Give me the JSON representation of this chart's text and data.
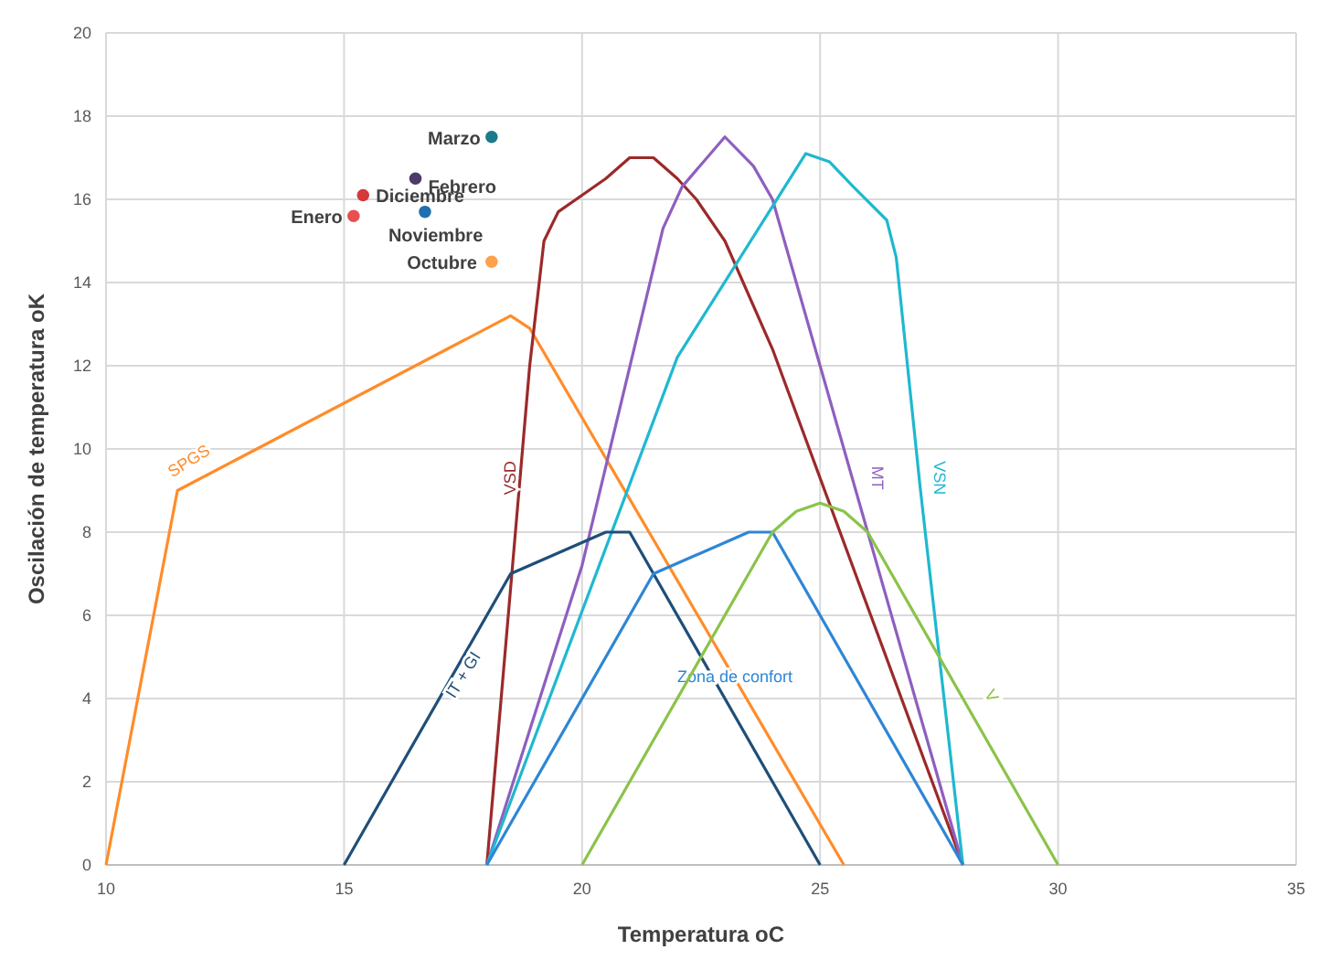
{
  "chart_data": {
    "type": "line",
    "xlabel": "Temperatura oC",
    "ylabel": "Oscilación de temperatura oK",
    "xlim": [
      10,
      35
    ],
    "xticks": [
      10,
      15,
      20,
      25,
      30,
      35
    ],
    "ylim": [
      0,
      20
    ],
    "yticks": [
      0,
      2,
      4,
      6,
      8,
      10,
      12,
      14,
      16,
      18,
      20
    ],
    "grid": true,
    "marker": "none",
    "line_style": "solid",
    "series": [
      {
        "name": "SPGS",
        "color": "#ff8c2a",
        "x": [
          10,
          11.5,
          18.5,
          18.9,
          25.5
        ],
        "values": [
          0,
          9,
          13.2,
          12.9,
          0
        ]
      },
      {
        "name": "VSD",
        "color": "#9b2a2a",
        "x": [
          18,
          18.9,
          19.2,
          19.5,
          20,
          20.5,
          21,
          21.5,
          22,
          22.4,
          23,
          24,
          28
        ],
        "values": [
          0,
          12,
          15,
          15.7,
          16.1,
          16.5,
          17,
          17,
          16.5,
          16,
          15,
          12.4,
          0
        ]
      },
      {
        "name": "MT",
        "color": "#8e5fbf",
        "x": [
          18,
          20,
          21.7,
          22.1,
          23,
          23.6,
          24,
          28
        ],
        "values": [
          0,
          7.2,
          15.3,
          16.3,
          17.5,
          16.8,
          16,
          0
        ]
      },
      {
        "name": "VSN",
        "color": "#1fb8d0",
        "x": [
          18,
          22,
          24.7,
          25.2,
          25.7,
          26.4,
          26.6,
          27.1,
          28
        ],
        "values": [
          0,
          12.2,
          17.1,
          16.9,
          16.3,
          15.5,
          14.6,
          9.1,
          0
        ]
      },
      {
        "name": "IT + GI",
        "color": "#1f4e79",
        "x": [
          15,
          18.5,
          20.5,
          21,
          25
        ],
        "values": [
          0,
          7,
          8,
          8,
          0
        ]
      },
      {
        "name": "Zona de confort",
        "color": "#2e86d4",
        "x": [
          18,
          21.5,
          23.5,
          24,
          28
        ],
        "values": [
          0,
          7,
          8,
          8,
          0
        ]
      },
      {
        "name": "V",
        "color": "#8bc34a",
        "x": [
          20,
          24,
          24.5,
          25,
          25.5,
          26,
          30
        ],
        "values": [
          0,
          8,
          8.5,
          8.7,
          8.5,
          8,
          0
        ]
      },
      {
        "type": "scatter",
        "name": "Marzo",
        "color": "#1a7a8a",
        "marker": "circle",
        "x": [
          18.1
        ],
        "values": [
          17.5
        ]
      },
      {
        "type": "scatter",
        "name": "Febrero",
        "color": "#4b3a6b",
        "marker": "circle",
        "x": [
          16.5
        ],
        "values": [
          16.5
        ]
      },
      {
        "type": "scatter",
        "name": "Diciembre",
        "color": "#d43a3a",
        "marker": "circle",
        "x": [
          15.4
        ],
        "values": [
          16.1
        ]
      },
      {
        "type": "scatter",
        "name": "Enero",
        "color": "#e85050",
        "marker": "circle",
        "x": [
          15.2
        ],
        "values": [
          15.6
        ]
      },
      {
        "type": "scatter",
        "name": "Noviembre",
        "color": "#1f6fb0",
        "marker": "circle",
        "x": [
          16.7
        ],
        "values": [
          15.7
        ]
      },
      {
        "type": "scatter",
        "name": "Octubre",
        "color": "#ffa04d",
        "marker": "circle",
        "x": [
          18.1
        ],
        "values": [
          14.5
        ]
      }
    ]
  }
}
